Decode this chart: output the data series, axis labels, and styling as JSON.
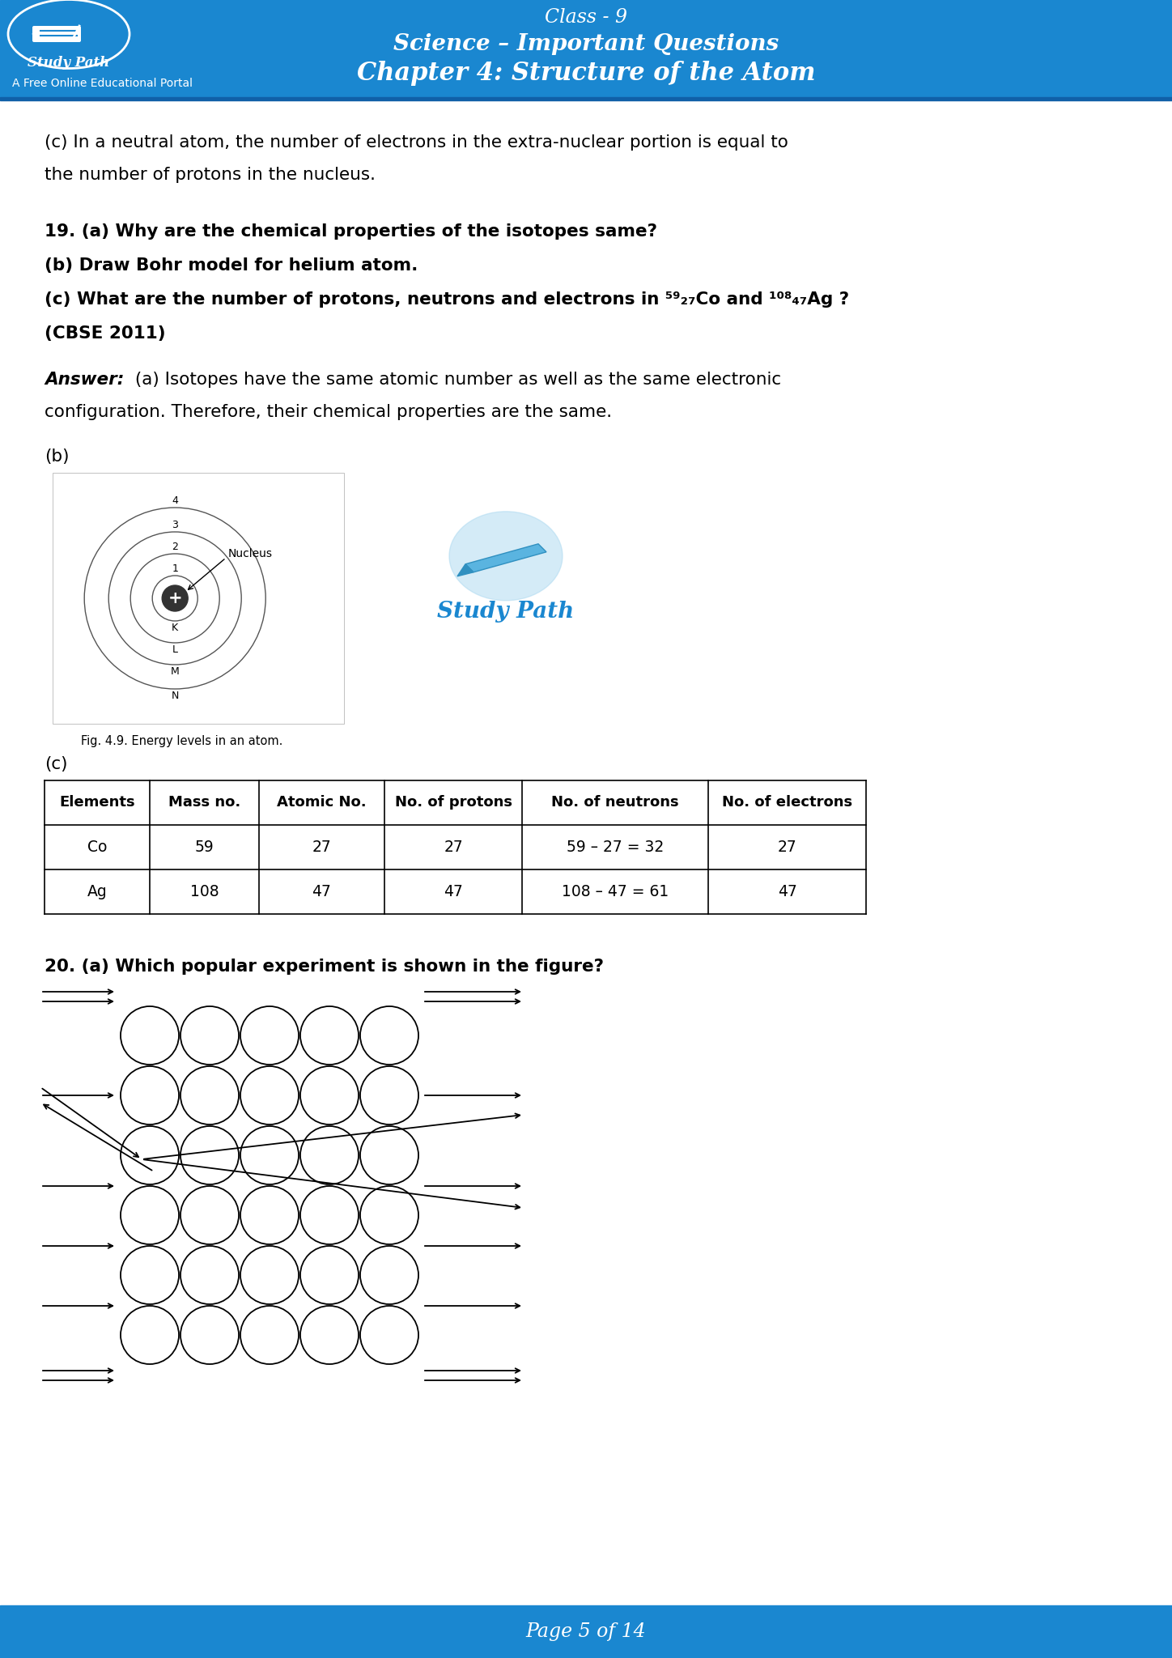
{
  "header_bg": "#1a87d0",
  "header_text_color": "#ffffff",
  "page_bg": "#ffffff",
  "footer_bg": "#1a87d0",
  "footer_text": "Page 5 of 14",
  "class_line": "Class - 9",
  "subject_line": "Science – Important Questions",
  "chapter_line": "Chapter 4: Structure of the Atom",
  "logo_text": "Study Path",
  "portal_text": "A Free Online Educational Portal",
  "content_line1": "(c) In a neutral atom, the number of electrons in the extra-nuclear portion is equal to",
  "content_line2": "the number of protons in the nucleus.",
  "q19_line1": "19. (a) Why are the chemical properties of the isotopes same?",
  "q19_line2": "(b) Draw Bohr model for helium atom.",
  "q19_line3": "(c) What are the number of protons, neutrons and electrons in ⁵⁹₂₇Co and ¹⁰⁸₄₇Ag ?",
  "q19_line4": "(CBSE 2011)",
  "answer_label": "Answer:",
  "answer_line1": "(a) Isotopes have the same atomic number as well as the same electronic",
  "answer_line2": "configuration. Therefore, their chemical properties are the same.",
  "b_label": "(b)",
  "fig_caption": "Fig. 4.9. Energy levels in an atom.",
  "c_label": "(c)",
  "table_headers": [
    "Elements",
    "Mass no.",
    "Atomic No.",
    "No. of protons",
    "No. of neutrons",
    "No. of electrons"
  ],
  "table_row1": [
    "Co",
    "59",
    "27",
    "27",
    "59 – 27 = 32",
    "27"
  ],
  "table_row2": [
    "Ag",
    "108",
    "47",
    "47",
    "108 – 47 = 61",
    "47"
  ],
  "q20_line": "20. (a) Which popular experiment is shown in the figure?",
  "studypath_text": "Study Path"
}
